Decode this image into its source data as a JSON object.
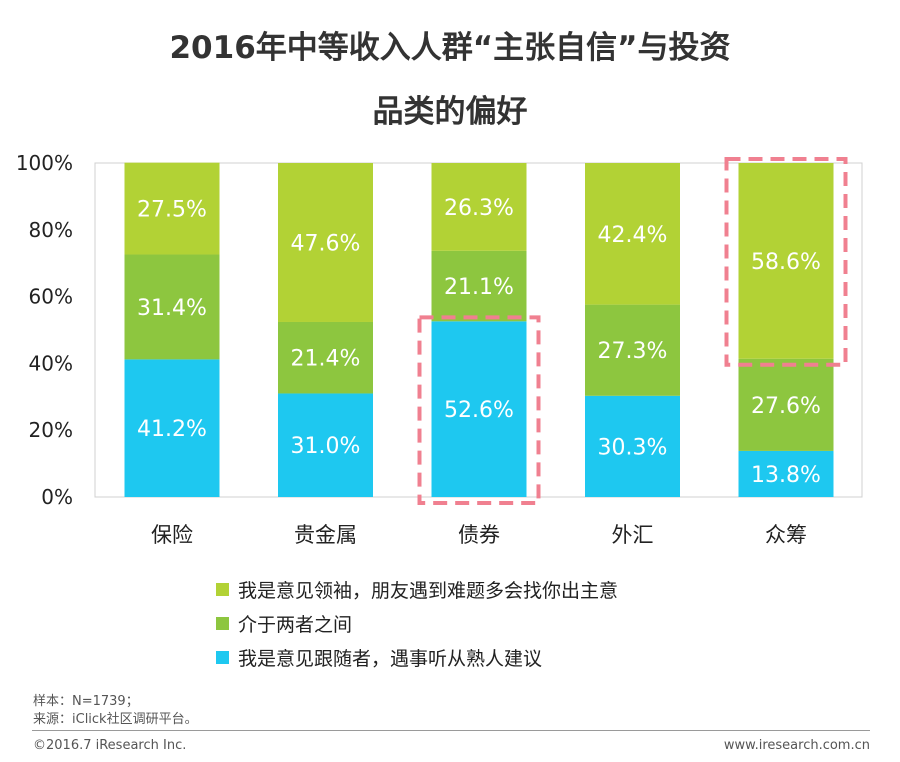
{
  "title_line1": "2016年中等收入人群“主张自信”与投资",
  "title_line2": "品类的偏好",
  "colors": {
    "leader": "#b2d235",
    "neutral": "#8dc63f",
    "follower": "#1ec8f0",
    "highlight": "#f08090",
    "axis": "#999999"
  },
  "chart_data": {
    "type": "bar",
    "stacked": true,
    "categories": [
      "保险",
      "贵金属",
      "债券",
      "外汇",
      "众筹"
    ],
    "ylim": [
      0,
      100
    ],
    "yticks": [
      "0%",
      "20%",
      "40%",
      "60%",
      "80%",
      "100%"
    ],
    "series": [
      {
        "name": "我是意见跟随者，遇事听从熟人建议",
        "values": [
          41.2,
          31.0,
          52.6,
          30.3,
          13.8
        ],
        "labels": [
          "41.2%",
          "31.0%",
          "52.6%",
          "30.3%",
          "13.8%"
        ]
      },
      {
        "name": "介于两者之间",
        "values": [
          31.4,
          21.4,
          21.1,
          27.3,
          27.6
        ],
        "labels": [
          "31.4%",
          "21.4%",
          "21.1%",
          "27.3%",
          "27.6%"
        ]
      },
      {
        "name": "我是意见领袖，朋友遇到难题多会找你出主意",
        "values": [
          27.5,
          47.6,
          26.3,
          42.4,
          58.6
        ],
        "labels": [
          "27.5%",
          "47.6%",
          "26.3%",
          "42.4%",
          "58.6%"
        ]
      }
    ],
    "highlighted": [
      {
        "category": "债券",
        "series": "我是意见跟随者，遇事听从熟人建议"
      },
      {
        "category": "众筹",
        "series": "我是意见领袖，朋友遇到难题多会找你出主意"
      }
    ]
  },
  "legend": [
    {
      "label": "我是意见领袖，朋友遇到难题多会找你出主意",
      "color": "#b2d235"
    },
    {
      "label": "介于两者之间",
      "color": "#8dc63f"
    },
    {
      "label": "我是意见跟随者，遇事听从熟人建议",
      "color": "#1ec8f0"
    }
  ],
  "note_sample": "样本：N=1739；",
  "note_source": "来源：iClick社区调研平台。",
  "footer_left": "©2016.7 iResearch Inc.",
  "footer_right": "www.iresearch.com.cn"
}
